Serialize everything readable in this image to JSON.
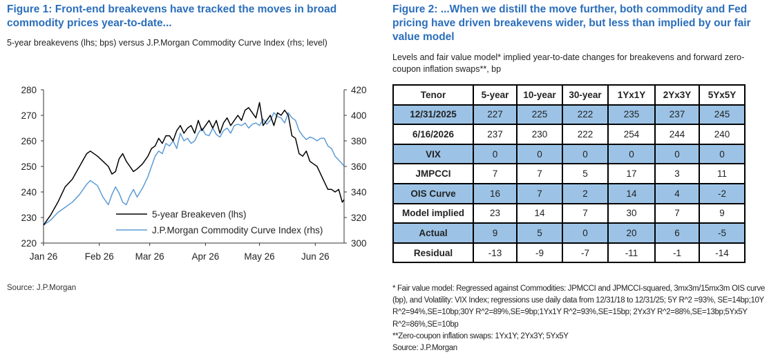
{
  "figure1": {
    "title": "Figure 1: Front-end breakevens have tracked the moves in broad commodity prices year-to-date...",
    "subtitle": "5-year breakevens (lhs; bps) versus J.P.Morgan Commodity Curve Index (rhs; level)",
    "source": "Source: J.P.Morgan"
  },
  "chart_data": {
    "type": "line",
    "x_ticks": [
      "Jan 26",
      "Feb 26",
      "Mar 26",
      "Apr 26",
      "May 26",
      "Jun 26"
    ],
    "x_tick_positions": [
      0,
      31,
      59,
      90,
      120,
      151
    ],
    "x_range": [
      0,
      167
    ],
    "y_left": {
      "ylim": [
        220,
        280
      ],
      "ticks": [
        "220",
        "230",
        "240",
        "250",
        "260",
        "270",
        "280"
      ]
    },
    "y_right": {
      "ylim": [
        300,
        420
      ],
      "ticks": [
        "300",
        "320",
        "340",
        "360",
        "380",
        "400",
        "420"
      ]
    },
    "legend_position": "bottom-right",
    "series": [
      {
        "name": "5-year Breakeven (lhs)",
        "axis": "left",
        "color": "#000000",
        "x": [
          0,
          4,
          8,
          12,
          16,
          20,
          24,
          26,
          30,
          33,
          36,
          38,
          40,
          42,
          44,
          46,
          48,
          50,
          52,
          55,
          58,
          60,
          62,
          64,
          66,
          68,
          70,
          72,
          74,
          76,
          78,
          80,
          82,
          84,
          86,
          88,
          90,
          92,
          94,
          96,
          98,
          100,
          102,
          104,
          106,
          108,
          110,
          112,
          114,
          116,
          118,
          120,
          122,
          124,
          126,
          128,
          130,
          132,
          134,
          136,
          138,
          140,
          142,
          144,
          146,
          148,
          150,
          152,
          154,
          156,
          158,
          160,
          162,
          164,
          166,
          167
        ],
        "values": [
          227,
          231,
          236,
          242,
          245,
          250,
          255,
          256,
          254,
          252,
          250,
          247,
          248,
          253,
          255,
          252,
          250,
          248,
          249,
          251,
          254,
          257,
          258,
          261,
          259,
          262,
          262,
          260,
          264,
          266,
          263,
          265,
          266,
          263,
          268,
          264,
          266,
          268,
          265,
          268,
          263,
          267,
          269,
          266,
          268,
          270,
          268,
          272,
          273,
          271,
          269,
          275,
          266,
          268,
          270,
          266,
          271,
          270,
          272,
          270,
          262,
          261,
          255,
          254,
          256,
          252,
          251,
          250,
          247,
          244,
          241,
          241,
          240,
          241,
          236,
          237
        ]
      },
      {
        "name": "J.P.Morgan Commodity Curve Index (rhs)",
        "axis": "right",
        "color": "#5b9bd5",
        "x": [
          0,
          4,
          8,
          12,
          16,
          20,
          24,
          26,
          30,
          33,
          36,
          38,
          40,
          42,
          44,
          46,
          48,
          50,
          52,
          55,
          58,
          60,
          62,
          64,
          66,
          68,
          70,
          72,
          74,
          76,
          78,
          80,
          82,
          84,
          86,
          88,
          90,
          92,
          94,
          96,
          98,
          100,
          102,
          104,
          106,
          108,
          110,
          112,
          114,
          116,
          118,
          120,
          122,
          124,
          126,
          128,
          130,
          132,
          134,
          136,
          138,
          140,
          142,
          144,
          146,
          148,
          150,
          152,
          154,
          156,
          158,
          160,
          162,
          164,
          166,
          167
        ],
        "values": [
          314,
          318,
          324,
          328,
          332,
          338,
          346,
          349,
          345,
          336,
          330,
          338,
          344,
          339,
          332,
          330,
          337,
          342,
          336,
          343,
          352,
          360,
          368,
          372,
          370,
          378,
          376,
          380,
          374,
          386,
          380,
          382,
          378,
          380,
          386,
          390,
          385,
          384,
          390,
          385,
          383,
          388,
          390,
          386,
          392,
          393,
          392,
          394,
          390,
          393,
          394,
          392,
          397,
          393,
          396,
          402,
          399,
          398,
          394,
          402,
          398,
          396,
          388,
          384,
          381,
          383,
          382,
          380,
          382,
          382,
          376,
          374,
          368,
          365,
          362,
          360
        ]
      }
    ]
  },
  "figure2": {
    "title": "Figure 2: ...When we distill the move further, both commodity and Fed pricing have driven breakevens wider, but less than implied by our fair value model",
    "subtitle": "Levels and fair value model* implied year-to-date changes for breakevens and forward zero-coupon inflation swaps**, bp",
    "table": {
      "headers": [
        "Tenor",
        "5-year",
        "10-year",
        "30-year",
        "1Yx1Y",
        "2Yx3Y",
        "5Yx5Y"
      ],
      "rows": [
        {
          "label": "12/31/2025",
          "values": [
            "227",
            "225",
            "222",
            "235",
            "237",
            "245"
          ],
          "shaded": true
        },
        {
          "label": "6/16/2026",
          "values": [
            "237",
            "230",
            "222",
            "254",
            "244",
            "240"
          ],
          "shaded": false
        },
        {
          "label": "VIX",
          "values": [
            "0",
            "0",
            "0",
            "0",
            "0",
            "0"
          ],
          "shaded": true
        },
        {
          "label": "JMPCCI",
          "values": [
            "7",
            "7",
            "5",
            "17",
            "3",
            "11"
          ],
          "shaded": false
        },
        {
          "label": "OIS Curve",
          "values": [
            "16",
            "7",
            "2",
            "14",
            "4",
            "-2"
          ],
          "shaded": true
        },
        {
          "label": "Model implied",
          "values": [
            "23",
            "14",
            "7",
            "30",
            "7",
            "9"
          ],
          "shaded": false
        },
        {
          "label": "Actual",
          "values": [
            "9",
            "5",
            "0",
            "20",
            "6",
            "-5"
          ],
          "shaded": true
        },
        {
          "label": "Residual",
          "values": [
            "-13",
            "-9",
            "-7",
            "-11",
            "-1",
            "-14"
          ],
          "shaded": false
        }
      ]
    },
    "footnote1": "* Fair value model: Regressed against Commodities: JPMCCI and JPMCCI-squared, 3mx3m/15mx3m OIS curve (bp), and Volatility: VIX Index; regressions use daily data from 12/31/18 to 12/31/25; 5Y R^2 =93%, SE=14bp;10Y R^2=94%,SE=10bp;30Y R^2=89%,SE=9bp;1Yx1Y R^2=93%,SE=15bp; 2Yx3Y R^2=88%,SE=13bp;5Yx5Y R^2=86%,SE=10bp",
    "footnote2": "**Zero-coupon inflation swaps: 1Yx1Y; 2Yx3Y; 5Yx5Y",
    "source": "Source: J.P.Morgan"
  }
}
